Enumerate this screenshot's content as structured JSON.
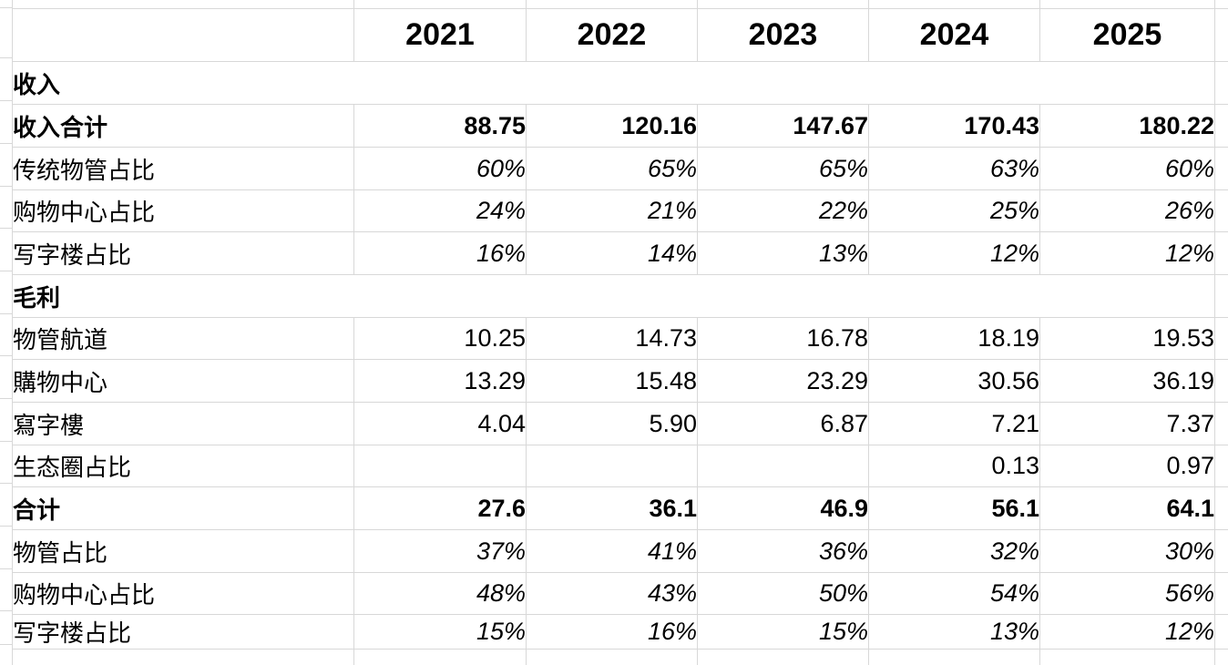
{
  "table": {
    "corner_label": "",
    "year_headers": [
      "2021",
      "2022",
      "2023",
      "2024",
      "2025"
    ],
    "rows": [
      {
        "label": "收入",
        "type": "section",
        "indent": 0,
        "values": [
          "",
          "",
          "",
          "",
          ""
        ]
      },
      {
        "label": "收入合计",
        "type": "total",
        "indent": 0,
        "values": [
          "88.75",
          "120.16",
          "147.67",
          "170.43",
          "180.22"
        ]
      },
      {
        "label": "传统物管占比",
        "type": "percent",
        "indent": 1,
        "values": [
          "60%",
          "65%",
          "65%",
          "63%",
          "60%"
        ]
      },
      {
        "label": "购物中心占比",
        "type": "percent",
        "indent": 1,
        "values": [
          "24%",
          "21%",
          "22%",
          "25%",
          "26%"
        ]
      },
      {
        "label": "写字楼占比",
        "type": "percent",
        "indent": 1,
        "values": [
          "16%",
          "14%",
          "13%",
          "12%",
          "12%"
        ]
      },
      {
        "label": "毛利",
        "type": "section",
        "indent": 0,
        "values": [
          "",
          "",
          "",
          "",
          ""
        ]
      },
      {
        "label": "物管航道",
        "type": "data",
        "indent": 1,
        "values": [
          "10.25",
          "14.73",
          "16.78",
          "18.19",
          "19.53"
        ]
      },
      {
        "label": "購物中心",
        "type": "data",
        "indent": 1,
        "values": [
          "13.29",
          "15.48",
          "23.29",
          "30.56",
          "36.19"
        ]
      },
      {
        "label": "寫字樓",
        "type": "data",
        "indent": 1,
        "values": [
          "4.04",
          "5.90",
          "6.87",
          "7.21",
          "7.37"
        ]
      },
      {
        "label": "生态圈占比",
        "type": "data",
        "indent": 1,
        "values": [
          "",
          "",
          "",
          "0.13",
          "0.97"
        ]
      },
      {
        "label": "合计",
        "type": "total",
        "indent": 0,
        "values": [
          "27.6",
          "36.1",
          "46.9",
          "56.1",
          "64.1"
        ]
      },
      {
        "label": "物管占比",
        "type": "percent",
        "indent": 1,
        "values": [
          "37%",
          "41%",
          "36%",
          "32%",
          "30%"
        ]
      },
      {
        "label": "购物中心占比",
        "type": "percent",
        "indent": 1,
        "values": [
          "48%",
          "43%",
          "50%",
          "54%",
          "56%"
        ]
      },
      {
        "label": "写字楼占比",
        "type": "percent",
        "indent": 1,
        "values": [
          "15%",
          "16%",
          "15%",
          "13%",
          "12%"
        ]
      }
    ]
  },
  "colors": {
    "section_row_bg": "#bdcfe9",
    "gridline": "#d8d8d8",
    "text": "#000000"
  }
}
